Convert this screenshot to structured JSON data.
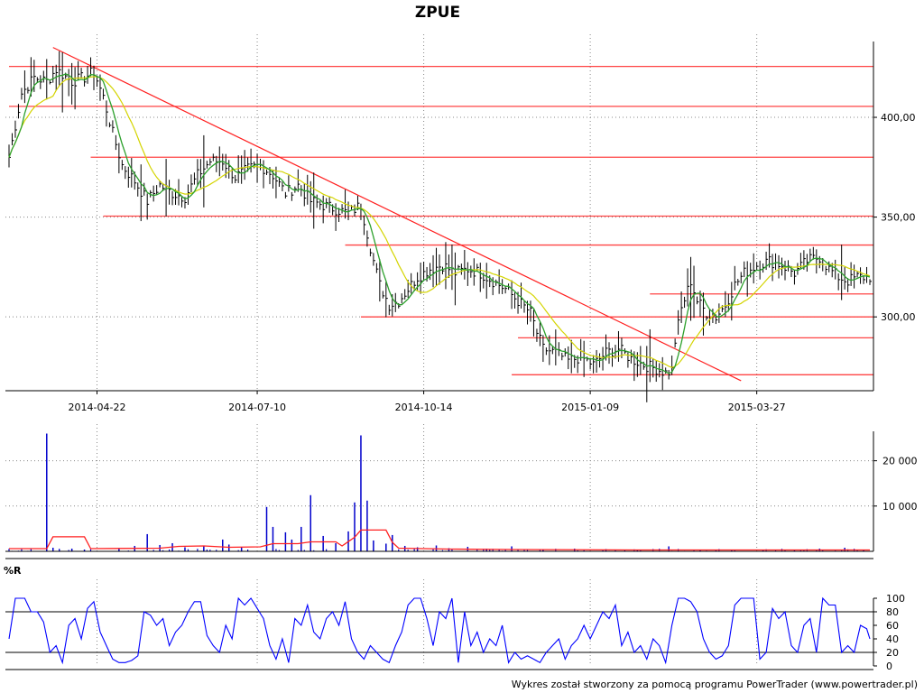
{
  "title": "ZPUE",
  "footer": "Wykres został stworzony za pomocą programu PowerTrader (www.powertrader.pl)",
  "colors": {
    "price_bar": "#000000",
    "sma_short": "#2ca02c",
    "sma_long": "#d4d400",
    "levels": "#ff4444",
    "trendline": "#ff2020",
    "volume_bar": "#0000cc",
    "volume_avg": "#ff2020",
    "williams_r": "#0000ff",
    "grid": "#888888"
  },
  "chart_data": [
    {
      "type": "line",
      "name": "price",
      "title": "ZPUE",
      "ylim": [
        263,
        438
      ],
      "y_ticks": [
        300,
        350,
        400
      ],
      "y_tick_labels": [
        "300,00",
        "350,00",
        "400,00"
      ],
      "x_ticks": [
        "2014-04-22",
        "2014-07-10",
        "2014-10-14",
        "2015-01-09",
        "2015-03-27"
      ],
      "x_tick_index": [
        28,
        79,
        132,
        185,
        238
      ],
      "n_bars": 275,
      "anchors": [
        [
          0,
          380
        ],
        [
          4,
          412
        ],
        [
          8,
          420
        ],
        [
          12,
          418
        ],
        [
          15,
          424
        ],
        [
          20,
          418
        ],
        [
          24,
          420
        ],
        [
          27,
          423
        ],
        [
          30,
          410
        ],
        [
          33,
          392
        ],
        [
          36,
          376
        ],
        [
          40,
          368
        ],
        [
          44,
          358
        ],
        [
          48,
          366
        ],
        [
          52,
          362
        ],
        [
          56,
          360
        ],
        [
          60,
          371
        ],
        [
          64,
          378
        ],
        [
          68,
          378
        ],
        [
          72,
          370
        ],
        [
          76,
          374
        ],
        [
          80,
          376
        ],
        [
          84,
          371
        ],
        [
          88,
          362
        ],
        [
          92,
          366
        ],
        [
          96,
          358
        ],
        [
          100,
          356
        ],
        [
          104,
          354
        ],
        [
          108,
          352
        ],
        [
          112,
          356
        ],
        [
          114,
          342
        ],
        [
          116,
          328
        ],
        [
          118,
          316
        ],
        [
          121,
          306
        ],
        [
          124,
          308
        ],
        [
          127,
          314
        ],
        [
          130,
          320
        ],
        [
          134,
          324
        ],
        [
          138,
          326
        ],
        [
          142,
          322
        ],
        [
          146,
          324
        ],
        [
          150,
          322
        ],
        [
          154,
          318
        ],
        [
          158,
          314
        ],
        [
          162,
          308
        ],
        [
          166,
          302
        ],
        [
          168,
          292
        ],
        [
          170,
          284
        ],
        [
          174,
          282
        ],
        [
          178,
          278
        ],
        [
          182,
          280
        ],
        [
          186,
          276
        ],
        [
          190,
          282
        ],
        [
          194,
          284
        ],
        [
          198,
          279
        ],
        [
          202,
          276
        ],
        [
          206,
          274
        ],
        [
          209,
          272
        ],
        [
          211,
          273
        ],
        [
          212,
          288
        ],
        [
          214,
          304
        ],
        [
          217,
          318
        ],
        [
          219,
          308
        ],
        [
          222,
          302
        ],
        [
          225,
          300
        ],
        [
          228,
          306
        ],
        [
          231,
          316
        ],
        [
          234,
          322
        ],
        [
          238,
          326
        ],
        [
          242,
          328
        ],
        [
          246,
          326
        ],
        [
          250,
          322
        ],
        [
          254,
          328
        ],
        [
          258,
          330
        ],
        [
          261,
          324
        ],
        [
          264,
          320
        ],
        [
          267,
          318
        ],
        [
          270,
          320
        ],
        [
          274,
          320
        ]
      ],
      "horizontal_levels": [
        {
          "y": 425.5,
          "from": 0,
          "to": 274
        },
        {
          "y": 405.5,
          "from": 0,
          "to": 274
        },
        {
          "y": 380.0,
          "from": 26,
          "to": 274
        },
        {
          "y": 350.5,
          "from": 30,
          "to": 274
        },
        {
          "y": 336.0,
          "from": 107,
          "to": 274
        },
        {
          "y": 311.5,
          "from": 204,
          "to": 274
        },
        {
          "y": 300.0,
          "from": 112,
          "to": 274
        },
        {
          "y": 289.5,
          "from": 162,
          "to": 274
        },
        {
          "y": 271.0,
          "from": 160,
          "to": 274
        }
      ],
      "trendline": {
        "from": [
          14,
          435
        ],
        "to": [
          233,
          268
        ]
      },
      "series": [
        {
          "name": "close"
        },
        {
          "name": "sma_short"
        },
        {
          "name": "sma_long"
        }
      ]
    },
    {
      "type": "bar",
      "name": "volume",
      "ylim": [
        0,
        26500
      ],
      "y_ticks": [
        10000,
        20000
      ],
      "y_tick_labels": [
        "10 000",
        "20 000"
      ],
      "spikes": [
        [
          12,
          26000
        ],
        [
          14,
          800
        ],
        [
          16,
          300
        ],
        [
          20,
          600
        ],
        [
          24,
          400
        ],
        [
          35,
          700
        ],
        [
          40,
          1200
        ],
        [
          44,
          3800
        ],
        [
          48,
          1400
        ],
        [
          52,
          1800
        ],
        [
          56,
          900
        ],
        [
          62,
          1100
        ],
        [
          68,
          2600
        ],
        [
          70,
          1500
        ],
        [
          74,
          900
        ],
        [
          82,
          9800
        ],
        [
          84,
          5400
        ],
        [
          88,
          4200
        ],
        [
          90,
          2600
        ],
        [
          93,
          5400
        ],
        [
          96,
          12400
        ],
        [
          100,
          3400
        ],
        [
          104,
          1800
        ],
        [
          108,
          4400
        ],
        [
          110,
          10800
        ],
        [
          112,
          25600
        ],
        [
          114,
          11200
        ],
        [
          116,
          2400
        ],
        [
          120,
          1700
        ],
        [
          122,
          3600
        ],
        [
          126,
          1200
        ],
        [
          130,
          900
        ],
        [
          136,
          1300
        ],
        [
          140,
          700
        ],
        [
          146,
          1000
        ],
        [
          152,
          600
        ],
        [
          160,
          1100
        ],
        [
          170,
          400
        ],
        [
          180,
          600
        ],
        [
          190,
          500
        ],
        [
          200,
          300
        ],
        [
          210,
          1100
        ],
        [
          220,
          400
        ],
        [
          230,
          300
        ],
        [
          240,
          400
        ],
        [
          250,
          300
        ],
        [
          258,
          600
        ],
        [
          266,
          800
        ],
        [
          272,
          300
        ]
      ],
      "average": [
        [
          0,
          600
        ],
        [
          12,
          600
        ],
        [
          14,
          3200
        ],
        [
          24,
          3200
        ],
        [
          26,
          600
        ],
        [
          48,
          700
        ],
        [
          54,
          1100
        ],
        [
          62,
          1200
        ],
        [
          70,
          900
        ],
        [
          80,
          1000
        ],
        [
          84,
          1700
        ],
        [
          92,
          1700
        ],
        [
          96,
          2100
        ],
        [
          104,
          2100
        ],
        [
          106,
          1200
        ],
        [
          110,
          3100
        ],
        [
          112,
          4700
        ],
        [
          120,
          4700
        ],
        [
          122,
          2000
        ],
        [
          124,
          700
        ],
        [
          140,
          500
        ],
        [
          160,
          400
        ],
        [
          200,
          300
        ],
        [
          240,
          300
        ],
        [
          274,
          300
        ]
      ]
    },
    {
      "type": "line",
      "name": "williams_r",
      "title": "%R",
      "ylim": [
        0,
        100
      ],
      "y_ticks": [
        0,
        20,
        40,
        60,
        80,
        100
      ],
      "y_tick_labels": [
        "0",
        "20",
        "40",
        "60",
        "80",
        "100"
      ],
      "reference_lines": [
        20,
        80
      ],
      "anchors": [
        [
          0,
          40
        ],
        [
          2,
          100
        ],
        [
          5,
          100
        ],
        [
          7,
          80
        ],
        [
          9,
          80
        ],
        [
          11,
          65
        ],
        [
          13,
          20
        ],
        [
          15,
          30
        ],
        [
          17,
          5
        ],
        [
          19,
          60
        ],
        [
          21,
          70
        ],
        [
          23,
          40
        ],
        [
          25,
          85
        ],
        [
          27,
          95
        ],
        [
          29,
          50
        ],
        [
          31,
          30
        ],
        [
          33,
          10
        ],
        [
          35,
          5
        ],
        [
          37,
          5
        ],
        [
          39,
          8
        ],
        [
          41,
          15
        ],
        [
          43,
          80
        ],
        [
          45,
          75
        ],
        [
          47,
          60
        ],
        [
          49,
          70
        ],
        [
          51,
          30
        ],
        [
          53,
          50
        ],
        [
          55,
          60
        ],
        [
          57,
          80
        ],
        [
          59,
          95
        ],
        [
          61,
          95
        ],
        [
          63,
          45
        ],
        [
          65,
          30
        ],
        [
          67,
          20
        ],
        [
          69,
          60
        ],
        [
          71,
          40
        ],
        [
          73,
          100
        ],
        [
          75,
          90
        ],
        [
          77,
          100
        ],
        [
          79,
          85
        ],
        [
          81,
          70
        ],
        [
          83,
          30
        ],
        [
          85,
          10
        ],
        [
          87,
          40
        ],
        [
          89,
          5
        ],
        [
          91,
          70
        ],
        [
          93,
          60
        ],
        [
          95,
          90
        ],
        [
          97,
          50
        ],
        [
          99,
          40
        ],
        [
          101,
          70
        ],
        [
          103,
          80
        ],
        [
          105,
          60
        ],
        [
          107,
          95
        ],
        [
          109,
          40
        ],
        [
          111,
          20
        ],
        [
          113,
          10
        ],
        [
          115,
          30
        ],
        [
          117,
          20
        ],
        [
          119,
          10
        ],
        [
          121,
          5
        ],
        [
          123,
          30
        ],
        [
          125,
          50
        ],
        [
          127,
          90
        ],
        [
          129,
          100
        ],
        [
          131,
          100
        ],
        [
          133,
          70
        ],
        [
          135,
          30
        ],
        [
          137,
          80
        ],
        [
          139,
          70
        ],
        [
          141,
          100
        ],
        [
          143,
          5
        ],
        [
          145,
          80
        ],
        [
          147,
          30
        ],
        [
          149,
          50
        ],
        [
          151,
          20
        ],
        [
          153,
          40
        ],
        [
          155,
          30
        ],
        [
          157,
          60
        ],
        [
          159,
          5
        ],
        [
          161,
          20
        ],
        [
          163,
          10
        ],
        [
          165,
          15
        ],
        [
          167,
          10
        ],
        [
          169,
          5
        ],
        [
          171,
          20
        ],
        [
          173,
          30
        ],
        [
          175,
          40
        ],
        [
          177,
          10
        ],
        [
          179,
          30
        ],
        [
          181,
          40
        ],
        [
          183,
          60
        ],
        [
          185,
          40
        ],
        [
          187,
          60
        ],
        [
          189,
          80
        ],
        [
          191,
          70
        ],
        [
          193,
          90
        ],
        [
          195,
          30
        ],
        [
          197,
          50
        ],
        [
          199,
          20
        ],
        [
          201,
          30
        ],
        [
          203,
          10
        ],
        [
          205,
          40
        ],
        [
          207,
          30
        ],
        [
          209,
          5
        ],
        [
          211,
          60
        ],
        [
          213,
          100
        ],
        [
          215,
          100
        ],
        [
          217,
          95
        ],
        [
          219,
          80
        ],
        [
          221,
          40
        ],
        [
          223,
          20
        ],
        [
          225,
          10
        ],
        [
          227,
          15
        ],
        [
          229,
          30
        ],
        [
          231,
          90
        ],
        [
          233,
          100
        ],
        [
          235,
          100
        ],
        [
          237,
          100
        ],
        [
          239,
          10
        ],
        [
          241,
          20
        ],
        [
          243,
          85
        ],
        [
          245,
          70
        ],
        [
          247,
          80
        ],
        [
          249,
          30
        ],
        [
          251,
          20
        ],
        [
          253,
          60
        ],
        [
          255,
          70
        ],
        [
          257,
          20
        ],
        [
          259,
          100
        ],
        [
          261,
          90
        ],
        [
          263,
          90
        ],
        [
          265,
          20
        ],
        [
          267,
          30
        ],
        [
          269,
          20
        ],
        [
          271,
          60
        ],
        [
          273,
          55
        ],
        [
          274,
          40
        ]
      ]
    }
  ]
}
